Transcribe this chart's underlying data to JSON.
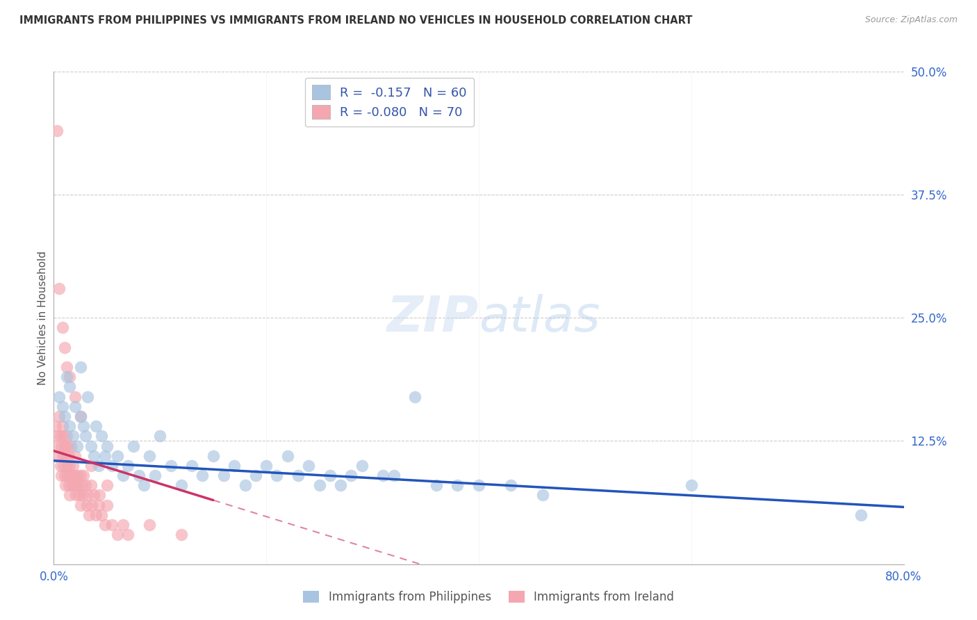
{
  "title": "IMMIGRANTS FROM PHILIPPINES VS IMMIGRANTS FROM IRELAND NO VEHICLES IN HOUSEHOLD CORRELATION CHART",
  "source": "Source: ZipAtlas.com",
  "ylabel": "No Vehicles in Household",
  "xlim": [
    0.0,
    0.8
  ],
  "ylim": [
    0.0,
    0.5
  ],
  "xtick_positions": [
    0.0,
    0.2,
    0.4,
    0.6,
    0.8
  ],
  "xticklabels": [
    "0.0%",
    "",
    "",
    "",
    "80.0%"
  ],
  "ytick_positions": [
    0.0,
    0.125,
    0.25,
    0.375,
    0.5
  ],
  "yticklabels_right": [
    "",
    "12.5%",
    "25.0%",
    "37.5%",
    "50.0%"
  ],
  "philippines_color": "#a8c4e0",
  "ireland_color": "#f4a7b0",
  "philippines_line_color": "#2255bb",
  "ireland_line_color": "#cc3366",
  "R_philippines": -0.157,
  "N_philippines": 60,
  "R_ireland": -0.08,
  "N_ireland": 70,
  "watermark_zip": "ZIP",
  "watermark_atlas": "atlas",
  "philippines_x": [
    0.005,
    0.008,
    0.01,
    0.012,
    0.015,
    0.015,
    0.018,
    0.02,
    0.022,
    0.025,
    0.025,
    0.028,
    0.03,
    0.032,
    0.035,
    0.038,
    0.04,
    0.042,
    0.045,
    0.048,
    0.05,
    0.055,
    0.06,
    0.065,
    0.07,
    0.075,
    0.08,
    0.085,
    0.09,
    0.095,
    0.1,
    0.11,
    0.12,
    0.13,
    0.14,
    0.15,
    0.16,
    0.17,
    0.18,
    0.19,
    0.2,
    0.21,
    0.22,
    0.23,
    0.24,
    0.25,
    0.26,
    0.27,
    0.28,
    0.29,
    0.31,
    0.32,
    0.34,
    0.36,
    0.38,
    0.4,
    0.43,
    0.46,
    0.6,
    0.76
  ],
  "philippines_y": [
    0.17,
    0.16,
    0.15,
    0.19,
    0.14,
    0.18,
    0.13,
    0.16,
    0.12,
    0.15,
    0.2,
    0.14,
    0.13,
    0.17,
    0.12,
    0.11,
    0.14,
    0.1,
    0.13,
    0.11,
    0.12,
    0.1,
    0.11,
    0.09,
    0.1,
    0.12,
    0.09,
    0.08,
    0.11,
    0.09,
    0.13,
    0.1,
    0.08,
    0.1,
    0.09,
    0.11,
    0.09,
    0.1,
    0.08,
    0.09,
    0.1,
    0.09,
    0.11,
    0.09,
    0.1,
    0.08,
    0.09,
    0.08,
    0.09,
    0.1,
    0.09,
    0.09,
    0.17,
    0.08,
    0.08,
    0.08,
    0.08,
    0.07,
    0.08,
    0.05
  ],
  "ireland_x": [
    0.002,
    0.003,
    0.004,
    0.005,
    0.005,
    0.006,
    0.006,
    0.007,
    0.007,
    0.008,
    0.008,
    0.009,
    0.009,
    0.01,
    0.01,
    0.011,
    0.011,
    0.012,
    0.012,
    0.013,
    0.013,
    0.014,
    0.014,
    0.015,
    0.015,
    0.016,
    0.016,
    0.017,
    0.018,
    0.019,
    0.02,
    0.02,
    0.021,
    0.022,
    0.023,
    0.024,
    0.025,
    0.025,
    0.026,
    0.027,
    0.028,
    0.03,
    0.031,
    0.032,
    0.033,
    0.035,
    0.036,
    0.038,
    0.04,
    0.042,
    0.043,
    0.045,
    0.048,
    0.05,
    0.055,
    0.06,
    0.065,
    0.07,
    0.09,
    0.12,
    0.003,
    0.005,
    0.008,
    0.01,
    0.012,
    0.015,
    0.02,
    0.025,
    0.035,
    0.05
  ],
  "ireland_y": [
    0.14,
    0.13,
    0.12,
    0.11,
    0.15,
    0.1,
    0.13,
    0.12,
    0.09,
    0.11,
    0.14,
    0.1,
    0.13,
    0.09,
    0.12,
    0.11,
    0.08,
    0.1,
    0.13,
    0.09,
    0.12,
    0.08,
    0.11,
    0.1,
    0.07,
    0.09,
    0.12,
    0.08,
    0.1,
    0.09,
    0.08,
    0.11,
    0.07,
    0.09,
    0.08,
    0.07,
    0.09,
    0.06,
    0.08,
    0.07,
    0.09,
    0.08,
    0.06,
    0.07,
    0.05,
    0.08,
    0.06,
    0.07,
    0.05,
    0.06,
    0.07,
    0.05,
    0.04,
    0.06,
    0.04,
    0.03,
    0.04,
    0.03,
    0.04,
    0.03,
    0.44,
    0.28,
    0.24,
    0.22,
    0.2,
    0.19,
    0.17,
    0.15,
    0.1,
    0.08
  ]
}
